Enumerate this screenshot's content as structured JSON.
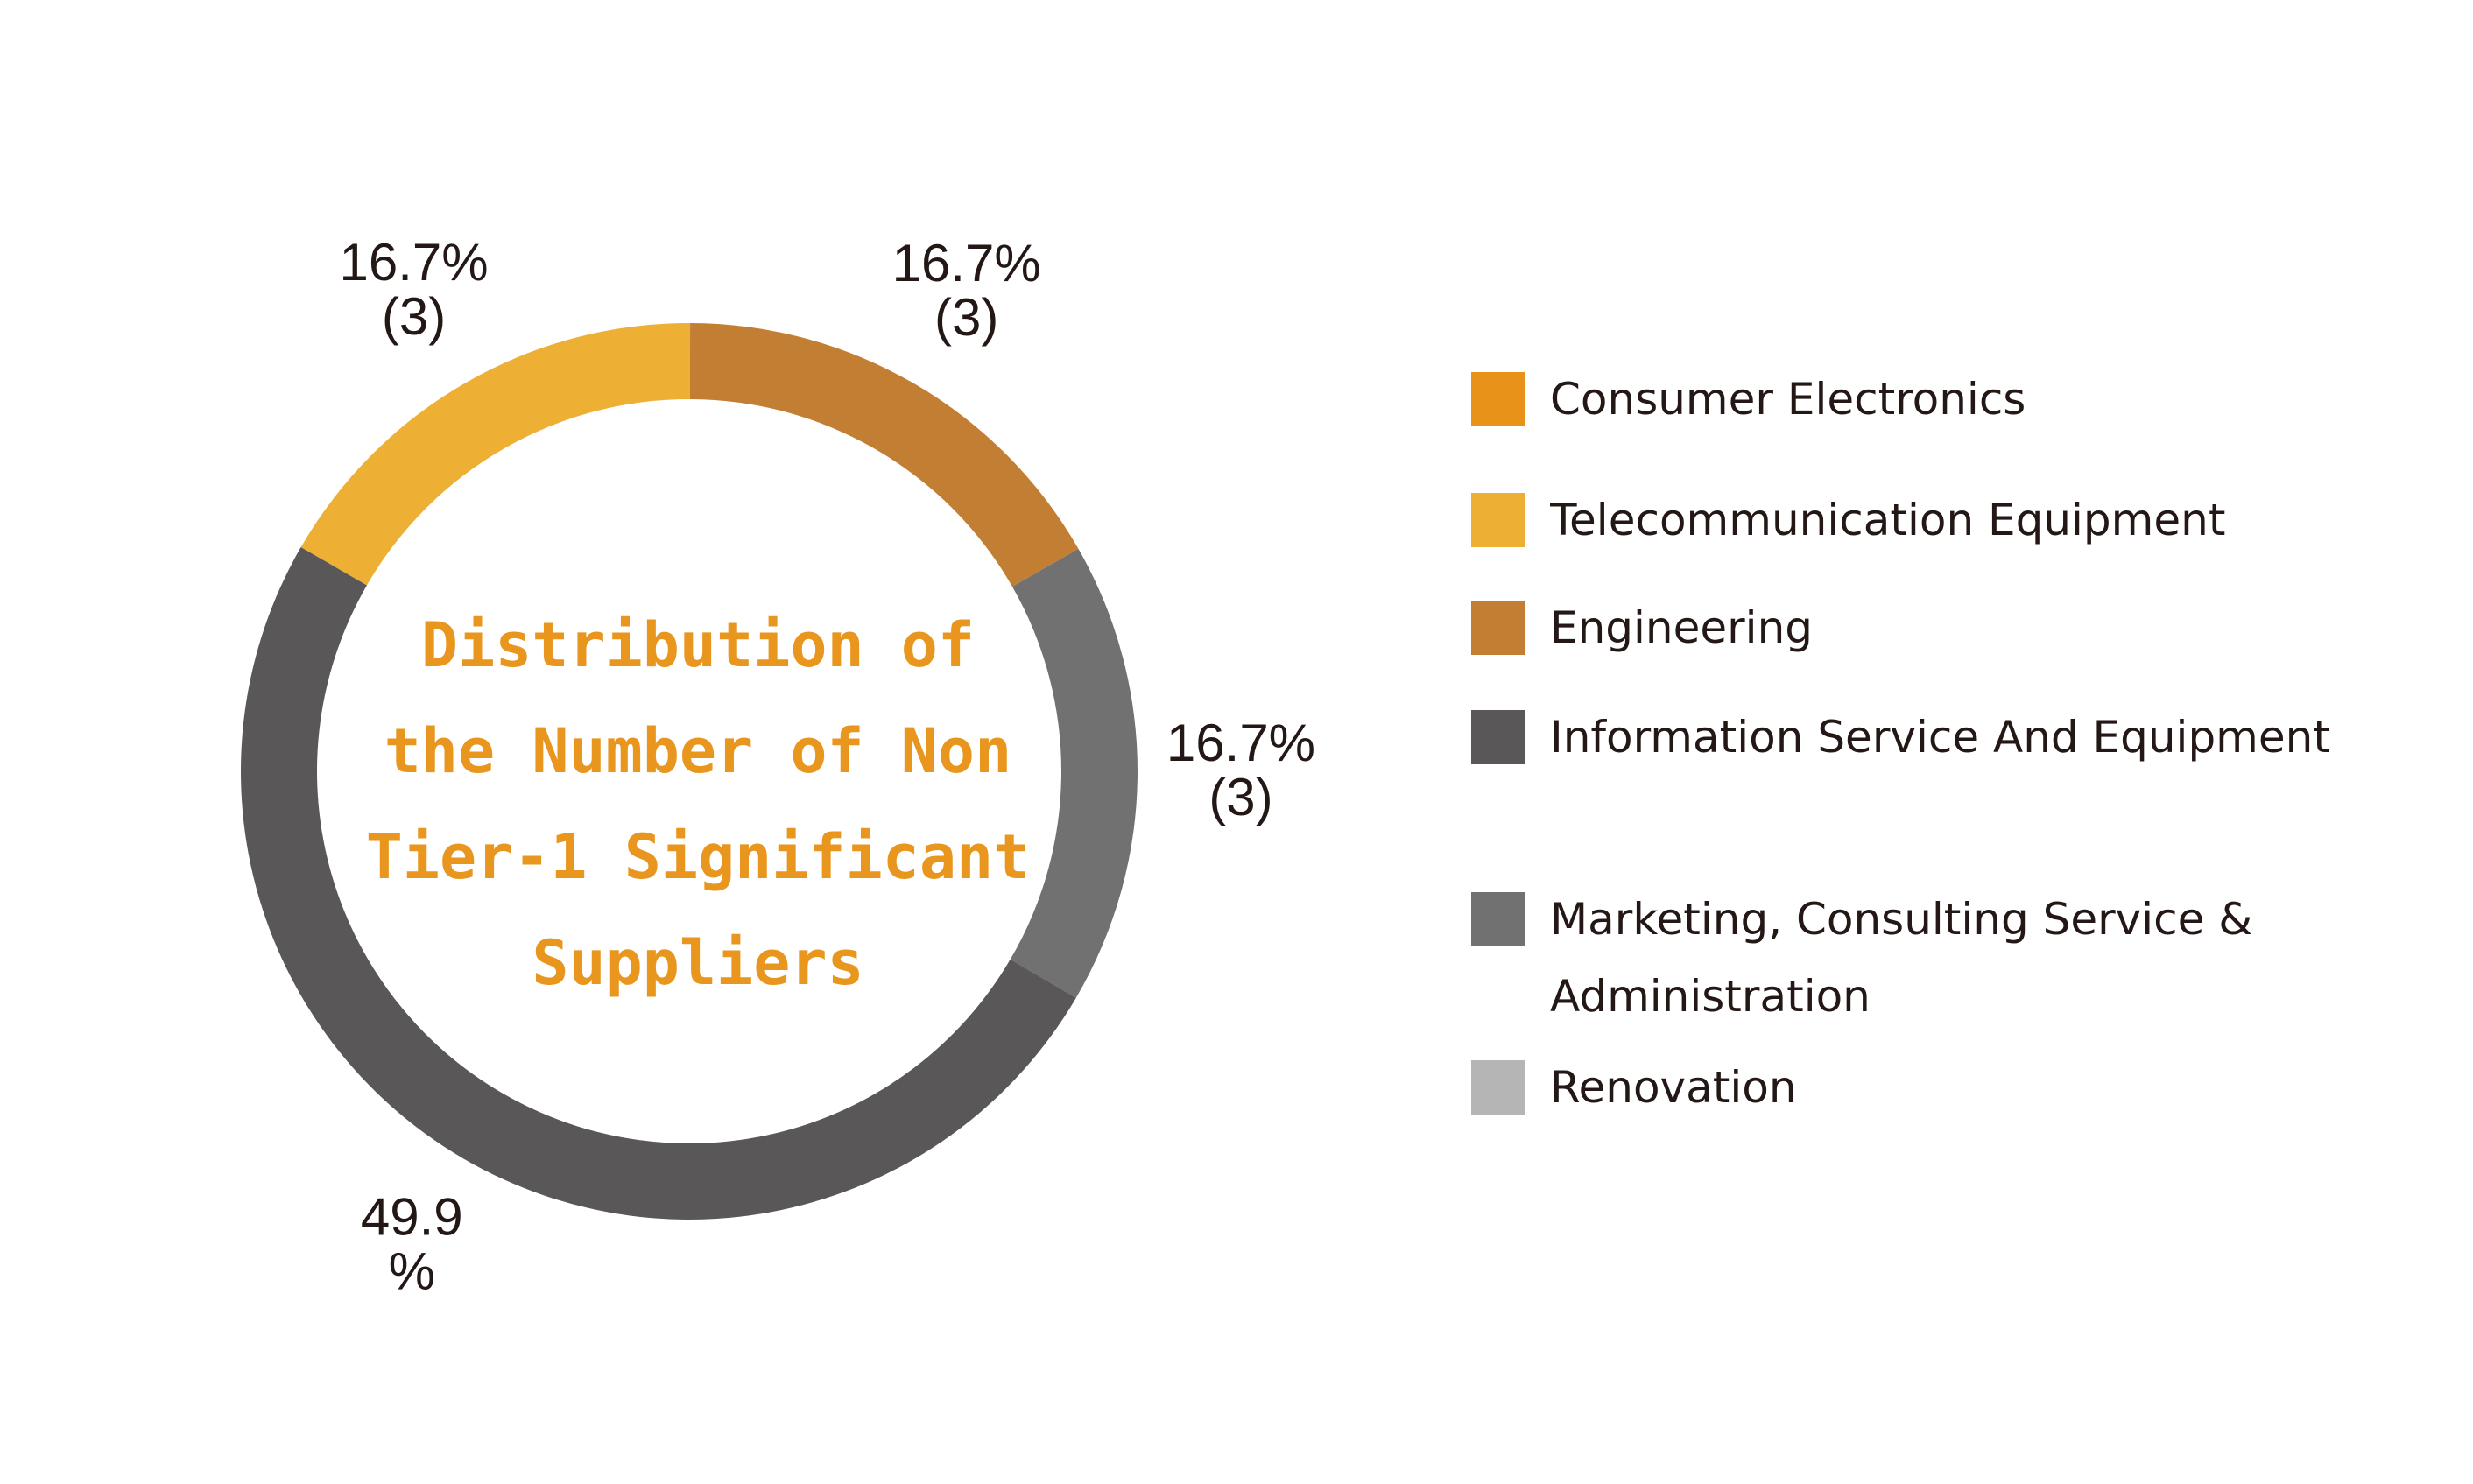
{
  "chart_data": {
    "type": "donut",
    "title": [
      "Distribution of",
      "the Number of Non",
      "Tier-1 Significant",
      "Suppliers"
    ],
    "categories": [
      "Consumer Electronics",
      "Telecommunication Equipment",
      "Engineering",
      "Information Service And Equipment",
      "Marketing, Consulting Service & Administration",
      "Renovation"
    ],
    "values": [
      0,
      16.7,
      16.7,
      49.9,
      16.7,
      0
    ],
    "value_labels": [
      null,
      [
        "16.7%",
        "(3)"
      ],
      [
        "16.7%",
        "(3)"
      ],
      [
        "49.9",
        "%"
      ],
      [
        "16.7%",
        "(3)"
      ],
      null
    ],
    "colors": [
      "#e8921a",
      "#edb034",
      "#c27f33",
      "#595757",
      "#717171",
      "#b5b5b6"
    ],
    "title_color": "#e8961e",
    "legend": "right"
  }
}
